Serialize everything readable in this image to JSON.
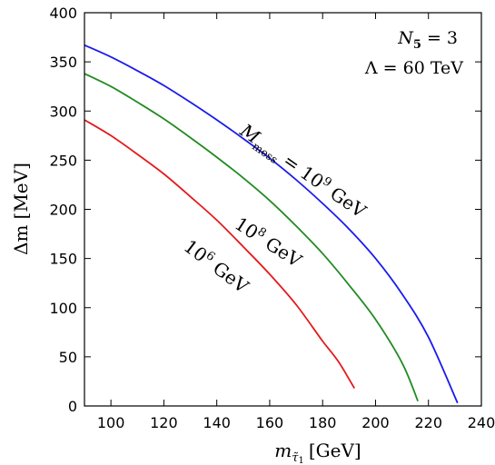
{
  "chart_data": {
    "type": "line",
    "xlabel_var": "m",
    "xlabel_sub": "τ̃",
    "xlabel_sub2": "1",
    "xlabel_unit": "[GeV]",
    "ylabel_var": "Δm",
    "ylabel_unit": "[MeV]",
    "xlim": [
      90,
      240
    ],
    "ylim": [
      0,
      400
    ],
    "xticks": [
      100,
      120,
      140,
      160,
      180,
      200,
      220,
      240
    ],
    "yticks": [
      0,
      50,
      100,
      150,
      200,
      250,
      300,
      350,
      400
    ],
    "annotations": {
      "n5_var": "N",
      "n5_sub": "5",
      "n5_rest": " = 3",
      "lambda": "Λ = 60 TeV"
    },
    "series": [
      {
        "name": "10^6 GeV",
        "color": "#e41a1c",
        "label_base": "10",
        "label_exp": "6",
        "label_unit": " GeV",
        "x": [
          90,
          100,
          110,
          120,
          130,
          140,
          150,
          160,
          170,
          180,
          186,
          192
        ],
        "y": [
          291,
          275,
          256,
          236,
          213,
          189,
          162,
          134,
          103,
          66,
          45,
          18
        ]
      },
      {
        "name": "10^8 GeV",
        "color": "#228b22",
        "label_base": "10",
        "label_exp": "8",
        "label_unit": " GeV",
        "x": [
          90,
          100,
          110,
          120,
          130,
          140,
          150,
          160,
          170,
          180,
          190,
          200,
          210,
          216
        ],
        "y": [
          338,
          325,
          309,
          292,
          273,
          253,
          232,
          209,
          183,
          155,
          123,
          88,
          44,
          5
        ]
      },
      {
        "name": "10^9 GeV",
        "color": "#1a1aee",
        "label_prefix_var": "M",
        "label_prefix_sub": "mess",
        "label_eq": " = ",
        "label_base": "10",
        "label_exp": "9",
        "label_unit": " GeV",
        "x": [
          90,
          100,
          110,
          120,
          130,
          140,
          150,
          160,
          170,
          180,
          190,
          200,
          210,
          220,
          231
        ],
        "y": [
          367,
          355,
          341,
          326,
          309,
          291,
          272,
          252,
          230,
          206,
          180,
          150,
          114,
          70,
          3
        ]
      }
    ]
  }
}
